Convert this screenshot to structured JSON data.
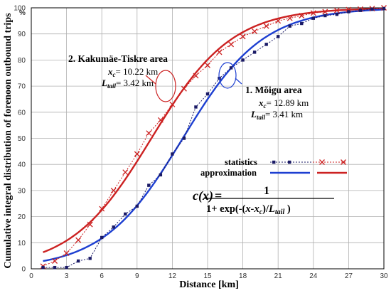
{
  "chart_data": {
    "type": "line",
    "title": "",
    "xlabel": "Distance [km]",
    "ylabel": "Cumulative integral distribution of forenoon outbound trips",
    "y_unit": "%",
    "xlim": [
      0,
      30
    ],
    "ylim": [
      0,
      100
    ],
    "x_ticks": [
      0,
      3,
      6,
      9,
      12,
      15,
      18,
      21,
      24,
      27,
      30
    ],
    "y_ticks": [
      0,
      10,
      20,
      30,
      40,
      50,
      60,
      70,
      80,
      90,
      100
    ],
    "grid": true,
    "colors": {
      "red": "#cc2222",
      "blue": "#1d3fd1",
      "navy": "#1a1a66",
      "grid": "#b0b0b0"
    },
    "series": [
      {
        "name": "statistics",
        "area": "Kakumäe-Tiskre area",
        "kind": "statistics",
        "marker": "x",
        "x": [
          1,
          2,
          3,
          4,
          5,
          6,
          7,
          8,
          9,
          10,
          11,
          12,
          13,
          14,
          15,
          16,
          17,
          18,
          19,
          20,
          21,
          22,
          23,
          24,
          25,
          26,
          27,
          28,
          29,
          30
        ],
        "y": [
          1,
          3,
          6,
          11,
          17,
          23,
          30,
          37,
          44,
          52,
          57,
          63,
          69,
          74,
          78,
          83,
          86,
          89,
          91,
          93,
          95,
          96,
          97,
          98,
          98.5,
          99,
          99.3,
          99.5,
          99.7,
          100
        ]
      },
      {
        "name": "statistics",
        "area": "Mõigu area",
        "kind": "statistics",
        "marker": "square",
        "x": [
          1,
          2,
          3,
          4,
          5,
          6,
          7,
          8,
          9,
          10,
          11,
          12,
          13,
          14,
          15,
          16,
          17,
          18,
          19,
          20,
          21,
          22,
          23,
          24,
          25,
          26,
          27,
          28,
          29,
          30
        ],
        "y": [
          0.5,
          0.5,
          0.5,
          3,
          4,
          12,
          16,
          21,
          24,
          32,
          36,
          44,
          50,
          62,
          67,
          73,
          77,
          80,
          83,
          86,
          89,
          93,
          94,
          96,
          97,
          97.5,
          98.5,
          99,
          99.5,
          99.7
        ]
      },
      {
        "name": "approximation",
        "area": "Kakumäe-Tiskre area",
        "kind": "approximation",
        "xc": 10.22,
        "Ltail": 3.42
      },
      {
        "name": "approximation",
        "area": "Mõigu area",
        "kind": "approximation",
        "xc": 12.89,
        "Ltail": 3.41
      }
    ],
    "legend": {
      "placement": "center-right",
      "items": [
        "statistics",
        "approximation"
      ]
    },
    "annotations": {
      "kakumae": {
        "title": "2. Kakumäe-Tiskre area",
        "xc_label": "x",
        "xc_sub": "c",
        "xc_value": "= 10.22 km",
        "lt_label": "L",
        "lt_sub": "tail",
        "lt_value": "=  3.42 km"
      },
      "moigu": {
        "title": "1. Mõigu area",
        "xc_label": "x",
        "xc_sub": "c",
        "xc_value": "= 12.89 km",
        "lt_label": "L",
        "lt_sub": "tail",
        "lt_value": "=  3.41 km"
      }
    },
    "formula": {
      "lhs": "c(x)",
      "eq": "=",
      "numerator": "1",
      "denominator_prefix": "1+ exp(-(",
      "denominator_x": "x",
      "denominator_minus": "-x",
      "denominator_c": "c",
      "denominator_mid": ")/",
      "denominator_L": "L",
      "denominator_tail": "tail",
      "denominator_suffix": " )"
    }
  }
}
